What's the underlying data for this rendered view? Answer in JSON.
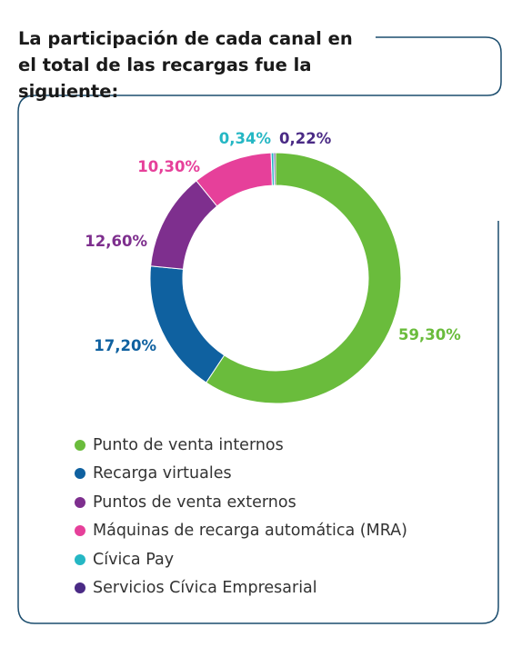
{
  "title": "La participación de cada canal en el total de las recargas fue la siguiente:",
  "colors": {
    "frame": "#1b4d6e"
  },
  "chart_data": {
    "type": "pie",
    "donut": true,
    "title": "",
    "legend_position": "bottom",
    "slices": [
      {
        "name": "Punto de venta internos",
        "value": 59.3,
        "label": "59,30%",
        "color": "#6abc3c"
      },
      {
        "name": "Recarga virtuales",
        "value": 17.2,
        "label": "17,20%",
        "color": "#0f61a0"
      },
      {
        "name": "Puntos de venta externos",
        "value": 12.6,
        "label": "12,60%",
        "color": "#7e2f8e"
      },
      {
        "name": "Máquinas de recarga automática (MRA)",
        "value": 10.3,
        "label": "10,30%",
        "color": "#e6409a"
      },
      {
        "name": "Cívica Pay",
        "value": 0.34,
        "label": "0,34%",
        "color": "#25b7c4"
      },
      {
        "name": "Servicios Cívica Empresarial",
        "value": 0.22,
        "label": "0,22%",
        "color": "#4a2a85"
      }
    ]
  }
}
